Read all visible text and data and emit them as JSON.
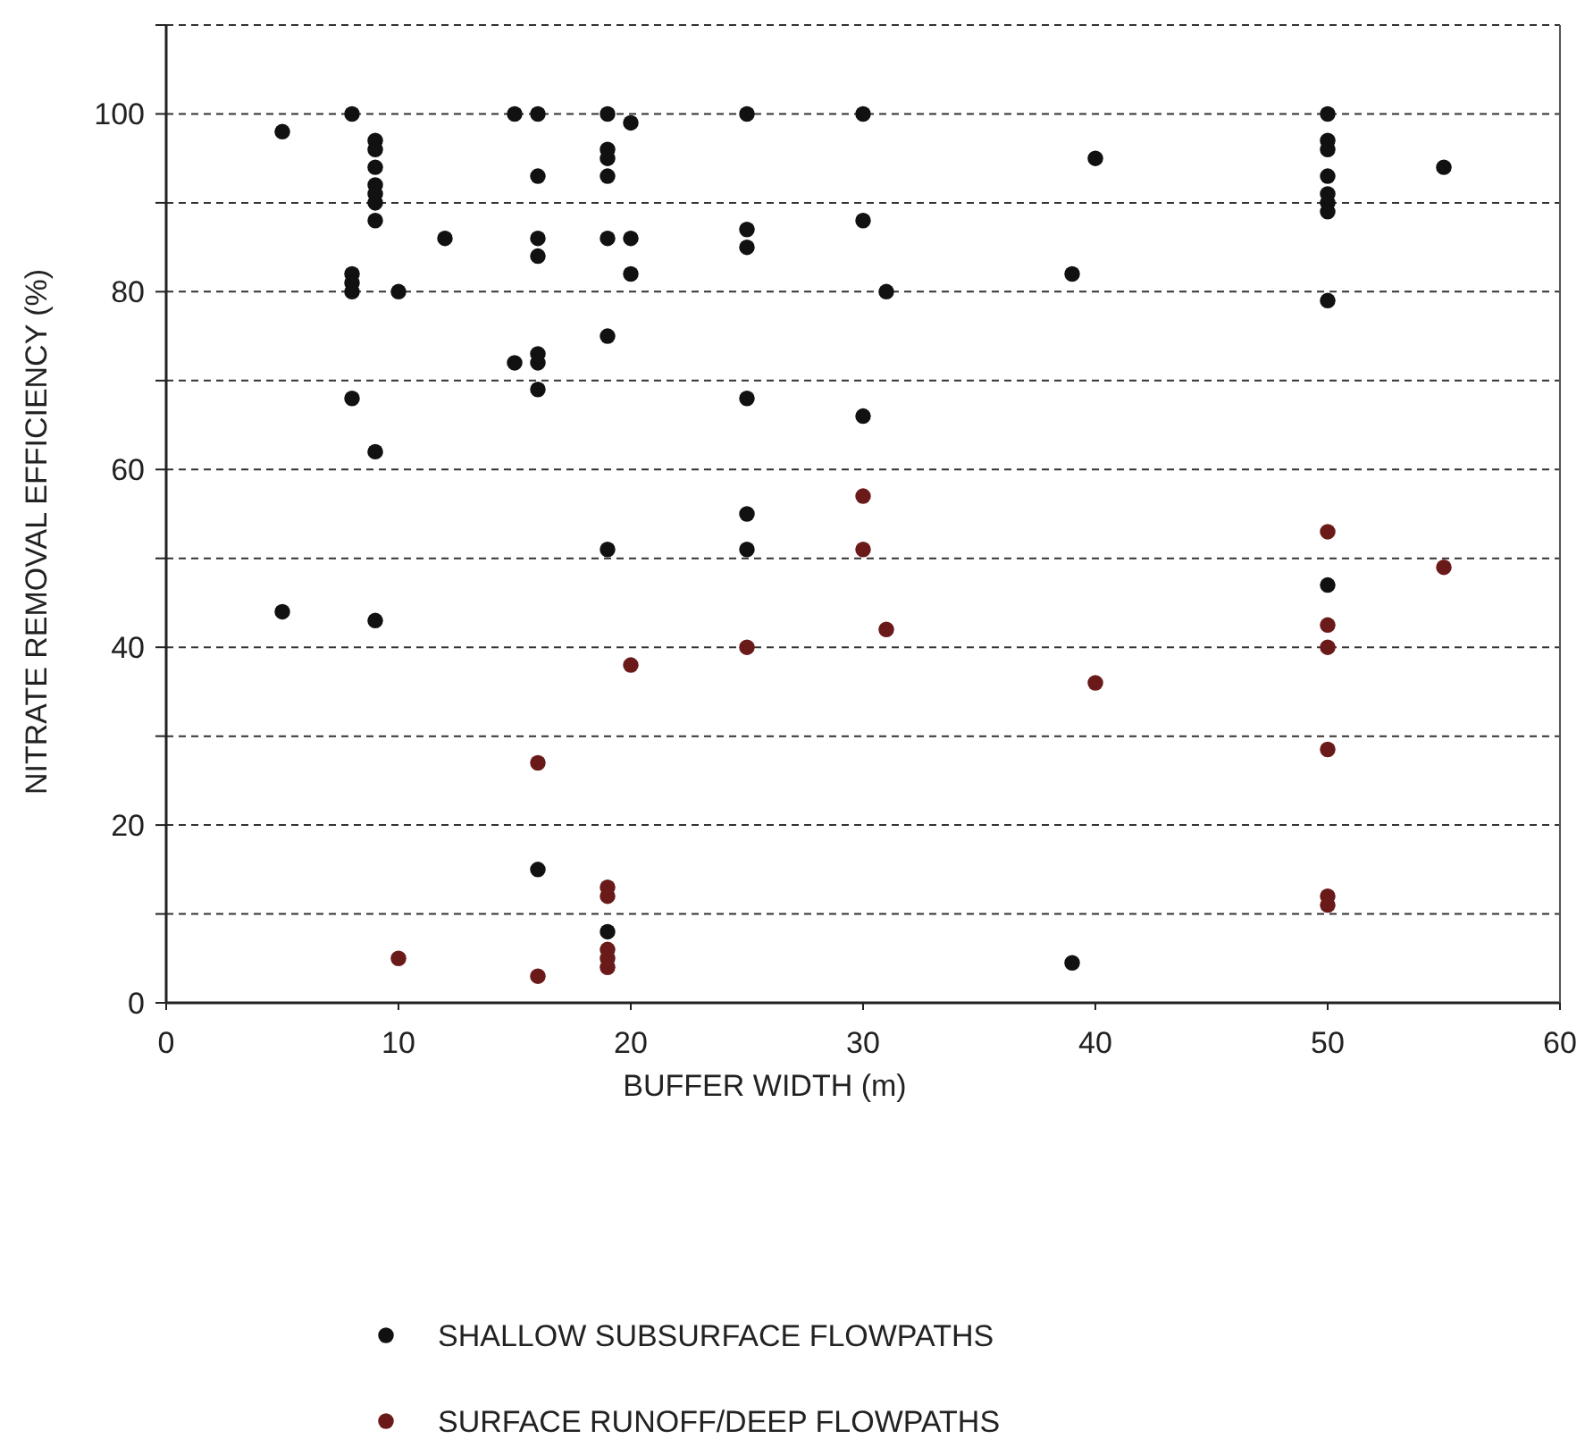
{
  "chart_data": {
    "type": "scatter",
    "xlabel": "BUFFER WIDTH (m)",
    "ylabel": "NITRATE REMOVAL EFFICIENCY (%)",
    "xlim": [
      0,
      60
    ],
    "xticks": [
      0,
      10,
      20,
      30,
      40,
      50,
      60
    ],
    "ylim": [
      0,
      110
    ],
    "yticks": [
      0,
      {
        "value": 10,
        "label": null
      },
      20,
      {
        "value": 30,
        "label": null
      },
      40,
      {
        "value": 50,
        "label": null
      },
      60,
      {
        "value": 70,
        "label": null
      },
      80,
      {
        "value": 90,
        "label": null
      },
      100,
      {
        "value": 110,
        "label": null
      }
    ],
    "grid": "y",
    "legend": "bottom",
    "marker": "circle",
    "series": [
      {
        "name": "SHALLOW SUBSURFACE FLOWPATHS",
        "color": "#111111",
        "x": [
          5,
          5,
          8,
          8,
          8,
          8,
          8,
          9,
          9,
          9,
          9,
          9,
          9,
          9,
          9,
          9,
          10,
          12,
          15,
          15,
          16,
          16,
          16,
          16,
          16,
          16,
          16,
          16,
          19,
          19,
          19,
          19,
          19,
          19,
          19,
          19,
          20,
          20,
          20,
          25,
          25,
          25,
          25,
          25,
          25,
          30,
          30,
          30,
          31,
          39,
          39,
          40,
          50,
          50,
          50,
          50,
          50,
          50,
          50,
          50,
          50,
          55
        ],
        "values": [
          98,
          44,
          100,
          82,
          81,
          80,
          68,
          97,
          96,
          94,
          92,
          91,
          90,
          88,
          62,
          43,
          80,
          86,
          100,
          72,
          100,
          93,
          86,
          84,
          73,
          72,
          69,
          15,
          100,
          96,
          95,
          93,
          86,
          75,
          51,
          8,
          99,
          86,
          82,
          100,
          87,
          85,
          68,
          55,
          51,
          100,
          88,
          66,
          80,
          82,
          4.5,
          95,
          100,
          97,
          96,
          93,
          91,
          90,
          89,
          79,
          47,
          94
        ]
      },
      {
        "name": "SURFACE RUNOFF/DEEP FLOWPATHS",
        "color": "#6b1a1a",
        "x": [
          10,
          16,
          16,
          19,
          19,
          19,
          19,
          19,
          20,
          25,
          30,
          30,
          31,
          40,
          50,
          50,
          50,
          50,
          50,
          50,
          55
        ],
        "values": [
          5,
          27,
          3,
          13,
          12,
          6,
          5,
          4,
          38,
          40,
          57,
          51,
          42,
          36,
          53,
          42.5,
          40,
          28.5,
          12,
          11,
          49
        ]
      }
    ]
  }
}
